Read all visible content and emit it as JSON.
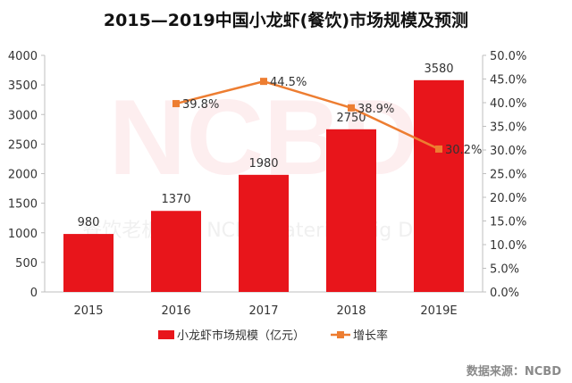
{
  "chart_data": {
    "type": "bar+line",
    "title": "2015—2019中国小龙虾(餐饮)市场规模及预测",
    "categories": [
      "2015",
      "2016",
      "2017",
      "2018",
      "2019E"
    ],
    "series": [
      {
        "name": "小龙虾市场规模（亿元）",
        "type": "bar",
        "axis": "left",
        "values": [
          980,
          1370,
          1980,
          2750,
          3580
        ],
        "color": "#e8151b"
      },
      {
        "name": "增长率",
        "type": "line",
        "axis": "right",
        "values": [
          null,
          39.8,
          44.5,
          38.9,
          30.2
        ],
        "labels": [
          "",
          "39.8%",
          "44.5%",
          "38.9%",
          "30.2%"
        ],
        "color": "#ed7d31"
      }
    ],
    "left_axis": {
      "ylim": [
        0,
        4000
      ],
      "ticks": [
        "0",
        "500",
        "1000",
        "1500",
        "2000",
        "2500",
        "3000",
        "3500",
        "4000"
      ]
    },
    "right_axis": {
      "ylim": [
        0,
        50
      ],
      "ticks": [
        "0.0%",
        "5.0%",
        "10.0%",
        "15.0%",
        "20.0%",
        "25.0%",
        "30.0%",
        "35.0%",
        "40.0%",
        "45.0%",
        "50.0%"
      ]
    },
    "grid": false,
    "legend_placement": "bottom"
  },
  "watermark": {
    "big": "NCBD",
    "small": "餐饮老板内参 NCBD Catering Big Data"
  },
  "source": "数据来源：NCBD"
}
